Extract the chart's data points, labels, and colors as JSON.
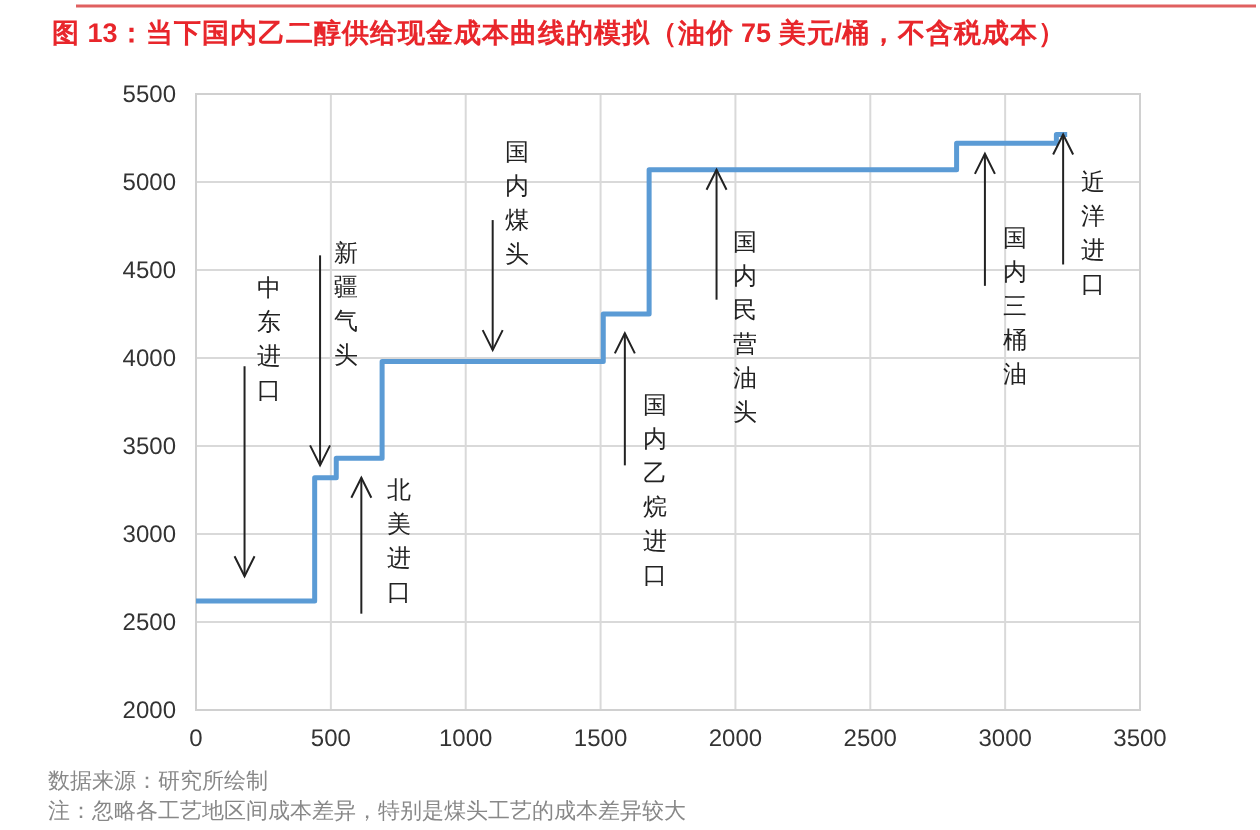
{
  "chart_data": {
    "type": "step",
    "title": "图 13：当下国内乙二醇供给现金成本曲线的模拟（油价 75 美元/桶，不含税成本）",
    "x": [
      0,
      440,
      520,
      690,
      1510,
      1680,
      2820,
      3190,
      3230
    ],
    "values": [
      2620,
      3320,
      3430,
      3980,
      4250,
      5070,
      5220,
      5270,
      5270
    ],
    "color": "#5b9bd5",
    "xlim": [
      0,
      3500
    ],
    "ylim": [
      2000,
      5500
    ],
    "xticks": [
      0,
      500,
      1000,
      1500,
      2000,
      2500,
      3000,
      3500
    ],
    "yticks": [
      2000,
      2500,
      3000,
      3500,
      4000,
      4500,
      5000,
      5500
    ],
    "grid": true,
    "annotations": [
      "中东进口",
      "新疆气头",
      "北美进口",
      "国内煤头",
      "国内乙烷进口",
      {
        "text": "国内民营油头",
        "x": 1930,
        "y": 5070
      },
      "国内三桶油",
      {
        "text": "近洋进口",
        "x": 3215,
        "y": 5270
      },
      "数据来源：研究所绘制",
      "注：忽略各工艺地区间成本差异，特别是煤头工艺的成本差异较大"
    ]
  }
}
